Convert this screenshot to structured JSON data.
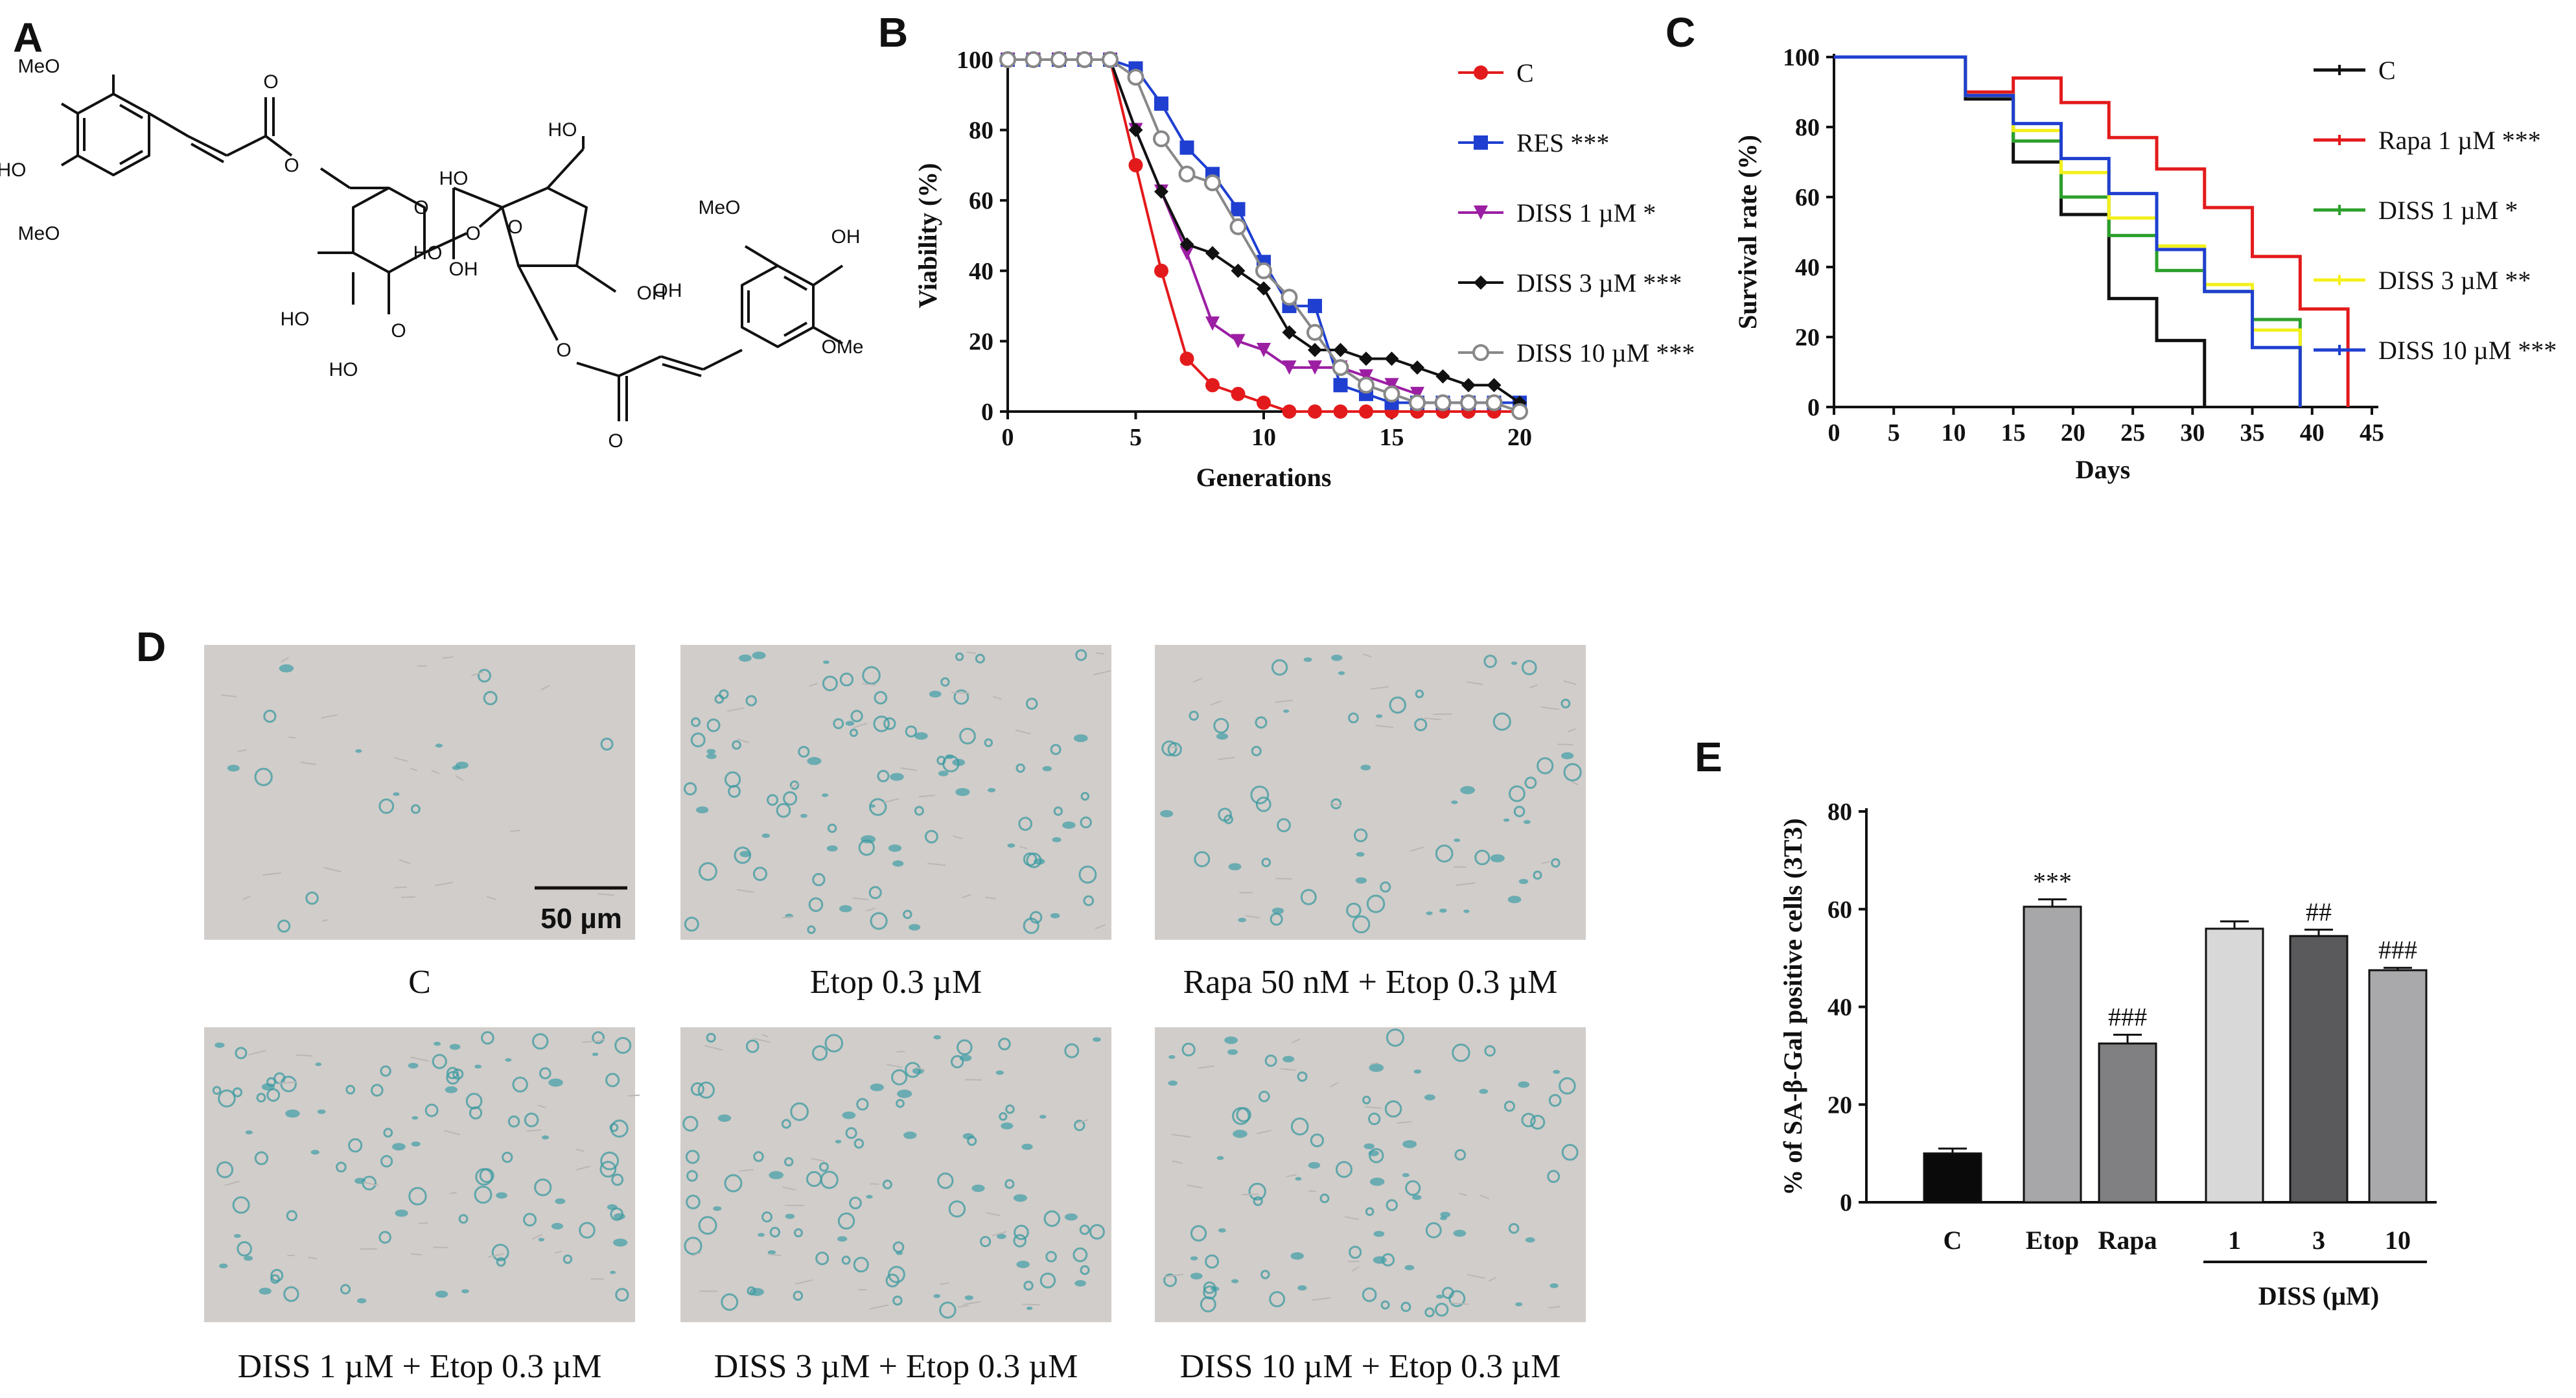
{
  "panels": {
    "A": {
      "label": "A"
    },
    "B": {
      "label": "B"
    },
    "C": {
      "label": "C"
    },
    "D": {
      "label": "D"
    },
    "E": {
      "label": "E"
    }
  },
  "structure_labels": [
    "MeO",
    "HO",
    "MeO",
    "O",
    "O",
    "O",
    "HO",
    "O",
    "OH",
    "HO",
    "HO",
    "O",
    "O",
    "HO",
    "OH",
    "O",
    "MeO",
    "OH",
    "OMe",
    "O",
    "HO",
    "OH"
  ],
  "micrographs": {
    "scale_bar_label": "50 µm",
    "captions": [
      "C",
      "Etop 0.3 µM",
      "Rapa 50 nM + Etop 0.3 µM",
      "DISS 1 µM + Etop 0.3 µM",
      "DISS 3 µM + Etop 0.3 µM",
      "DISS 10 µM + Etop 0.3 µM"
    ],
    "stain_density": [
      0.05,
      0.8,
      0.5,
      0.8,
      0.8,
      0.7
    ]
  },
  "chart_data": [
    {
      "panel": "B",
      "type": "line",
      "xlabel": "Generations",
      "ylabel": "Viability (%)",
      "xlim": [
        0,
        20
      ],
      "ylim": [
        0,
        100
      ],
      "xticks": [
        0,
        5,
        10,
        15,
        20
      ],
      "yticks": [
        0,
        20,
        40,
        60,
        80,
        100
      ],
      "legend_position": "top-right",
      "series": [
        {
          "name": "C",
          "color": "#e31a1c",
          "marker": "circle",
          "x": [
            0,
            1,
            2,
            3,
            4,
            5,
            6,
            7,
            8,
            9,
            10,
            11,
            12,
            13,
            14,
            15,
            16,
            17,
            18,
            19,
            20
          ],
          "y": [
            100,
            100,
            100,
            100,
            100,
            70,
            40,
            15,
            7.5,
            5,
            2.5,
            0,
            0,
            0,
            0,
            0,
            0,
            0,
            0,
            0,
            0
          ]
        },
        {
          "name": "RES ***",
          "color": "#1f3fd1",
          "marker": "square",
          "x": [
            0,
            1,
            2,
            3,
            4,
            5,
            6,
            7,
            8,
            9,
            10,
            11,
            12,
            13,
            14,
            15,
            16,
            17,
            18,
            19,
            20
          ],
          "y": [
            100,
            100,
            100,
            100,
            100,
            97.5,
            87.5,
            75,
            67.5,
            57.5,
            42.5,
            30,
            30,
            7.5,
            5,
            2.5,
            2.5,
            2.5,
            2.5,
            2.5,
            2.5
          ]
        },
        {
          "name": "DISS 1 µM *",
          "color": "#9c1fa3",
          "marker": "triangle-down",
          "x": [
            0,
            1,
            2,
            3,
            4,
            5,
            6,
            7,
            8,
            9,
            10,
            11,
            12,
            13,
            14,
            15,
            16
          ],
          "y": [
            100,
            100,
            100,
            100,
            100,
            80,
            62.5,
            45,
            25,
            20,
            17.5,
            12.5,
            12.5,
            12.5,
            10,
            7.5,
            5
          ]
        },
        {
          "name": "DISS 3 µM ***",
          "color": "#111111",
          "marker": "diamond",
          "x": [
            0,
            1,
            2,
            3,
            4,
            5,
            6,
            7,
            8,
            9,
            10,
            11,
            12,
            13,
            14,
            15,
            16,
            17,
            18,
            19,
            20
          ],
          "y": [
            100,
            100,
            100,
            100,
            100,
            80,
            62.5,
            47.5,
            45,
            40,
            35,
            22.5,
            17.5,
            17.5,
            15,
            15,
            12.5,
            10,
            7.5,
            7.5,
            2.5
          ]
        },
        {
          "name": "DISS 10 µM ***",
          "color": "#888888",
          "marker": "open-circle",
          "x": [
            0,
            1,
            2,
            3,
            4,
            5,
            6,
            7,
            8,
            9,
            10,
            11,
            12,
            13,
            14,
            15,
            16,
            17,
            18,
            19,
            20
          ],
          "y": [
            100,
            100,
            100,
            100,
            100,
            95,
            77.5,
            67.5,
            65,
            52.5,
            40,
            32.5,
            22.5,
            12.5,
            7.5,
            5,
            2.5,
            2.5,
            2.5,
            2.5,
            0
          ]
        }
      ]
    },
    {
      "panel": "C",
      "type": "line",
      "xlabel": "Days",
      "ylabel": "Survival rate (%)",
      "xlim": [
        0,
        45
      ],
      "ylim": [
        0,
        100
      ],
      "xticks": [
        0,
        5,
        10,
        15,
        20,
        25,
        30,
        35,
        40,
        45
      ],
      "yticks": [
        0,
        20,
        40,
        60,
        80,
        100
      ],
      "legend_position": "top-right",
      "series": [
        {
          "name": "C",
          "color": "#111111",
          "x": [
            0,
            11,
            15,
            19,
            23,
            27,
            31,
            31
          ],
          "y": [
            100,
            88,
            70,
            55,
            31,
            19,
            0,
            0
          ]
        },
        {
          "name": "Rapa 1 µM ***",
          "color": "#e31a1c",
          "x": [
            0,
            11,
            15,
            19,
            23,
            27,
            31,
            35,
            39,
            43,
            43
          ],
          "y": [
            100,
            90,
            94,
            87,
            77,
            68,
            57,
            43,
            28,
            15,
            0
          ]
        },
        {
          "name": "DISS 1 µM *",
          "color": "#2ca02c",
          "x": [
            0,
            11,
            15,
            19,
            23,
            27,
            31,
            35,
            39,
            39
          ],
          "y": [
            100,
            89,
            76,
            60,
            49,
            39,
            33,
            25,
            0,
            0
          ]
        },
        {
          "name": "DISS 3 µM **",
          "color": "#f3f01a",
          "x": [
            0,
            11,
            15,
            19,
            23,
            27,
            31,
            35,
            39,
            39
          ],
          "y": [
            100,
            89,
            79,
            67,
            54,
            46,
            35,
            22,
            0,
            0
          ]
        },
        {
          "name": "DISS 10 µM ***",
          "color": "#1f3fd1",
          "x": [
            0,
            11,
            15,
            19,
            23,
            27,
            31,
            35,
            39,
            39
          ],
          "y": [
            100,
            89,
            81,
            71,
            61,
            45,
            33,
            17,
            0,
            0
          ]
        }
      ]
    },
    {
      "panel": "E",
      "type": "bar",
      "ylabel": "% of SA-β-Gal positive cells (3T3)",
      "ylim": [
        0,
        80
      ],
      "yticks": [
        0,
        20,
        40,
        60,
        80
      ],
      "categories": [
        "C",
        "Etop",
        "Rapa",
        "1",
        "3",
        "10"
      ],
      "group_label": "DISS (µM)",
      "values": [
        10,
        60.5,
        32.5,
        56,
        54.5,
        47.5
      ],
      "errors": [
        1,
        1.5,
        1.8,
        1.5,
        1.3,
        0.5
      ],
      "colors": [
        "#0a0a0a",
        "#a7a7a9",
        "#808082",
        "#d8d8d8",
        "#5a5a5c",
        "#a9a9ab"
      ],
      "annotations": [
        "",
        "***",
        "###",
        "",
        "##",
        "###"
      ]
    }
  ]
}
